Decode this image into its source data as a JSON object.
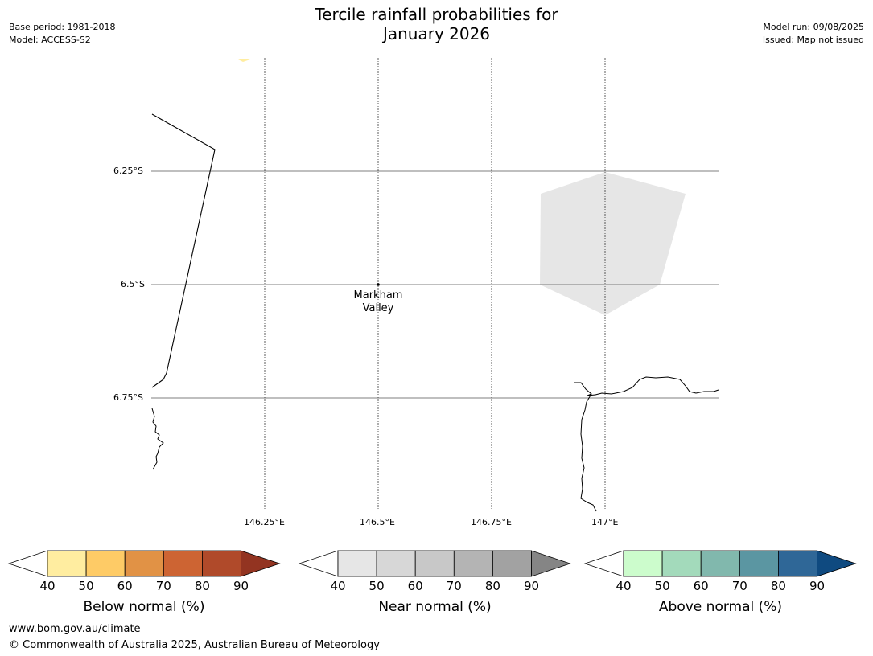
{
  "title": {
    "line1": "Tercile rainfall probabilities for",
    "line2": "January 2026"
  },
  "meta_left": {
    "base_period": "Base period: 1981-2018",
    "model": "Model: ACCESS-S2"
  },
  "meta_right": {
    "model_run": "Model run: 09/08/2025",
    "issued": "Issued: Map not issued"
  },
  "map": {
    "lat_labels": [
      "6.25°S",
      "6.5°S",
      "6.75°S"
    ],
    "lon_labels": [
      "146.25°E",
      "146.5°E",
      "146.75°E",
      "147°E"
    ],
    "place": {
      "line1": "Markham",
      "line2": "Valley"
    }
  },
  "colorbars": [
    {
      "label": "Below normal (%)",
      "ticks": [
        "40",
        "50",
        "60",
        "70",
        "80",
        "90"
      ],
      "colors": [
        "#ffeda0",
        "#fecb66",
        "#e19245",
        "#cd6433",
        "#b04a2a",
        "#933421"
      ]
    },
    {
      "label": "Near normal (%)",
      "ticks": [
        "40",
        "50",
        "60",
        "70",
        "80",
        "90"
      ],
      "colors": [
        "#e6e6e6",
        "#d7d7d7",
        "#c8c8c8",
        "#b4b4b4",
        "#a2a2a2",
        "#858585"
      ]
    },
    {
      "label": "Above normal (%)",
      "ticks": [
        "40",
        "50",
        "60",
        "70",
        "80",
        "90"
      ],
      "colors": [
        "#ccfccc",
        "#a3dabb",
        "#81b8ad",
        "#5b96a2",
        "#2f6797",
        "#0f4a80"
      ]
    }
  ],
  "footer": {
    "url": "www.bom.gov.au/climate",
    "copyright": "© Commonwealth of Australia 2025, Australian Bureau of Meteorology"
  }
}
